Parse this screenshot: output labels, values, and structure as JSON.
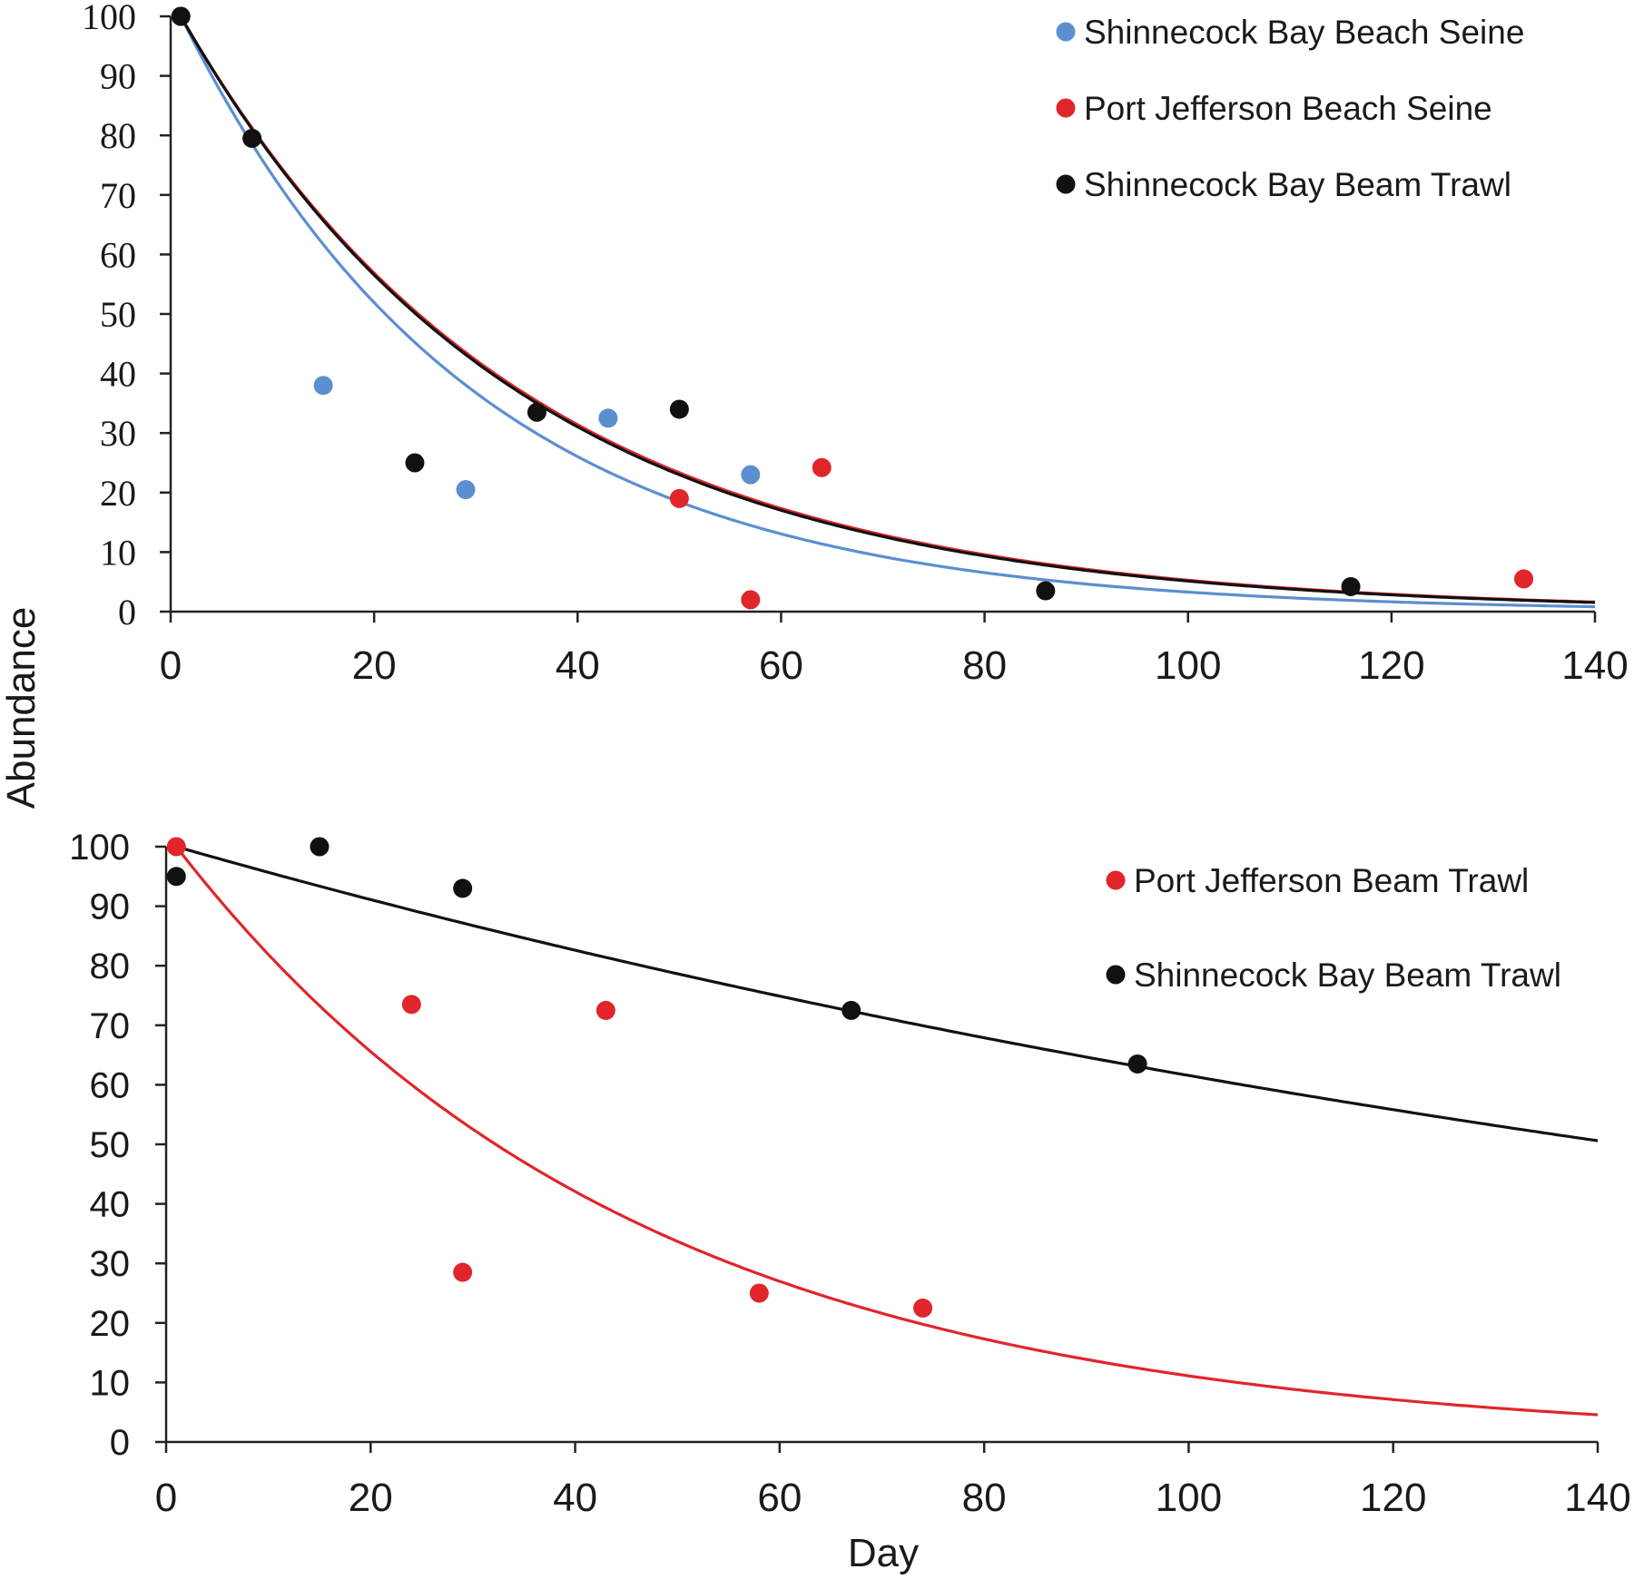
{
  "figure": {
    "ylabel": "Abundance",
    "xlabel": "Day"
  },
  "chart_data": [
    {
      "type": "scatter",
      "xlim": [
        0,
        140
      ],
      "ylim": [
        0,
        100
      ],
      "xticks": [
        0,
        20,
        40,
        60,
        80,
        100,
        120,
        140
      ],
      "yticks": [
        0,
        10,
        20,
        30,
        40,
        50,
        60,
        70,
        80,
        90,
        100
      ],
      "legend_position": "top-right",
      "series": [
        {
          "name": "Shinnecock Bay Beach Seine",
          "color": "#5b8fd0",
          "points": [
            [
              1,
              100
            ],
            [
              8,
              79.5
            ],
            [
              15,
              38
            ],
            [
              29,
              20.5
            ],
            [
              43,
              32.5
            ],
            [
              57,
              23
            ]
          ],
          "fit": {
            "model": "exponential",
            "a": 100,
            "k": 0.0345
          }
        },
        {
          "name": "Port Jefferson Beach Seine",
          "color": "#e0262b",
          "points": [
            [
              1,
              100
            ],
            [
              50,
              19
            ],
            [
              57,
              2
            ],
            [
              64,
              24.2
            ],
            [
              133,
              5.5
            ]
          ],
          "fit": {
            "model": "exponential",
            "a": 100,
            "k": 0.0297
          }
        },
        {
          "name": "Shinnecock Bay Beam Trawl",
          "color": "#111111",
          "points": [
            [
              1,
              100
            ],
            [
              8,
              79.5
            ],
            [
              24,
              25
            ],
            [
              36,
              33.5
            ],
            [
              50,
              34
            ],
            [
              86,
              3.5
            ],
            [
              116,
              4.2
            ]
          ],
          "fit": {
            "model": "exponential",
            "a": 100,
            "k": 0.03
          }
        }
      ]
    },
    {
      "type": "scatter",
      "xlim": [
        0,
        140
      ],
      "ylim": [
        0,
        100
      ],
      "xticks": [
        0,
        20,
        40,
        60,
        80,
        100,
        120,
        140
      ],
      "yticks": [
        0,
        10,
        20,
        30,
        40,
        50,
        60,
        70,
        80,
        90,
        100
      ],
      "legend_position": "top-right",
      "series": [
        {
          "name": "Port Jefferson Beam Trawl",
          "color": "#e0262b",
          "points": [
            [
              1,
              100
            ],
            [
              24,
              73.5
            ],
            [
              29,
              28.5
            ],
            [
              43,
              72.5
            ],
            [
              58,
              25
            ],
            [
              74,
              22.5
            ]
          ],
          "fit": {
            "model": "exponential",
            "a": 100,
            "k": 0.0222
          }
        },
        {
          "name": "Shinnecock Bay Beam Trawl",
          "color": "#111111",
          "points": [
            [
              1,
              95
            ],
            [
              15,
              100
            ],
            [
              29,
              93
            ],
            [
              67,
              72.5
            ],
            [
              95,
              63.5
            ]
          ],
          "fit": {
            "model": "exponential",
            "a": 100,
            "k": 0.0049
          }
        }
      ]
    }
  ]
}
